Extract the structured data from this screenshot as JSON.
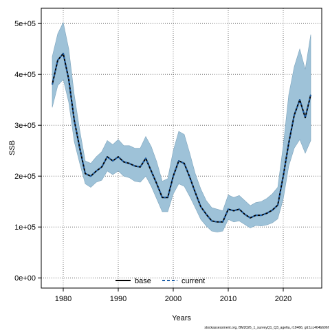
{
  "chart_data": {
    "type": "line",
    "xlabel": "Years",
    "ylabel": "SSB",
    "xlim": [
      1976,
      2027
    ],
    "ylim": [
      -20000,
      530000
    ],
    "xticks": [
      1980,
      1990,
      2000,
      2010,
      2020
    ],
    "yticks": [
      {
        "value": 0,
        "label": "0e+00"
      },
      {
        "value": 100000,
        "label": "1e+05"
      },
      {
        "value": 200000,
        "label": "2e+05"
      },
      {
        "value": 300000,
        "label": "3e+05"
      },
      {
        "value": 400000,
        "label": "4e+05"
      },
      {
        "value": 500000,
        "label": "5e+05"
      }
    ],
    "grid": true,
    "legend_position": "bottom-center",
    "x": [
      1978,
      1979,
      1980,
      1981,
      1982,
      1983,
      1984,
      1985,
      1986,
      1987,
      1988,
      1989,
      1990,
      1991,
      1992,
      1993,
      1994,
      1995,
      1996,
      1997,
      1998,
      1999,
      2000,
      2001,
      2002,
      2003,
      2004,
      2005,
      2006,
      2007,
      2008,
      2009,
      2010,
      2011,
      2012,
      2013,
      2014,
      2015,
      2016,
      2017,
      2018,
      2019,
      2020,
      2021,
      2022,
      2023,
      2024,
      2025
    ],
    "series": [
      {
        "name": "base",
        "color": "#000000",
        "style": "solid",
        "values": [
          380000,
          428000,
          441000,
          390000,
          310000,
          255000,
          205000,
          200000,
          210000,
          218000,
          238000,
          230000,
          238000,
          228000,
          225000,
          220000,
          218000,
          235000,
          210000,
          185000,
          158000,
          158000,
          200000,
          230000,
          225000,
          198000,
          168000,
          140000,
          125000,
          112000,
          110000,
          110000,
          135000,
          132000,
          135000,
          125000,
          118000,
          123000,
          123000,
          127000,
          133000,
          143000,
          200000,
          265000,
          320000,
          350000,
          315000,
          360000
        ]
      },
      {
        "name": "current",
        "color": "#1f5fa8",
        "style": "dashed",
        "values": [
          380000,
          428000,
          441000,
          390000,
          310000,
          255000,
          205000,
          200000,
          210000,
          218000,
          238000,
          230000,
          238000,
          228000,
          225000,
          220000,
          218000,
          235000,
          210000,
          185000,
          158000,
          158000,
          200000,
          230000,
          225000,
          198000,
          168000,
          140000,
          125000,
          112000,
          110000,
          110000,
          135000,
          132000,
          135000,
          125000,
          118000,
          123000,
          123000,
          127000,
          133000,
          143000,
          200000,
          265000,
          320000,
          350000,
          315000,
          360000
        ]
      }
    ],
    "band": {
      "color": "#9ec2d8",
      "upper": [
        435000,
        480000,
        502000,
        450000,
        360000,
        290000,
        230000,
        225000,
        238000,
        248000,
        270000,
        262000,
        272000,
        260000,
        260000,
        255000,
        255000,
        278000,
        258000,
        228000,
        190000,
        195000,
        250000,
        288000,
        282000,
        245000,
        205000,
        175000,
        152000,
        138000,
        135000,
        132000,
        163000,
        158000,
        162000,
        152000,
        142000,
        148000,
        150000,
        156000,
        165000,
        178000,
        260000,
        360000,
        415000,
        450000,
        410000,
        478000
      ],
      "lower": [
        335000,
        378000,
        390000,
        345000,
        268000,
        225000,
        185000,
        178000,
        188000,
        192000,
        210000,
        203000,
        210000,
        200000,
        197000,
        190000,
        188000,
        200000,
        180000,
        155000,
        130000,
        130000,
        165000,
        185000,
        180000,
        160000,
        138000,
        115000,
        102000,
        92000,
        90000,
        92000,
        115000,
        110000,
        112000,
        105000,
        98000,
        103000,
        102000,
        104000,
        108000,
        116000,
        155000,
        220000,
        255000,
        272000,
        245000,
        270000
      ]
    },
    "legend": [
      "base",
      "current"
    ]
  },
  "footnote": "stockassessment.org, BM2026_1_surveyQ1_Q3_age6a, r19466, git:1cc464b606f",
  "colors": {
    "band": "#9ec2d8",
    "base": "#000000",
    "current": "#1f5fa8",
    "grid": "#555555"
  }
}
